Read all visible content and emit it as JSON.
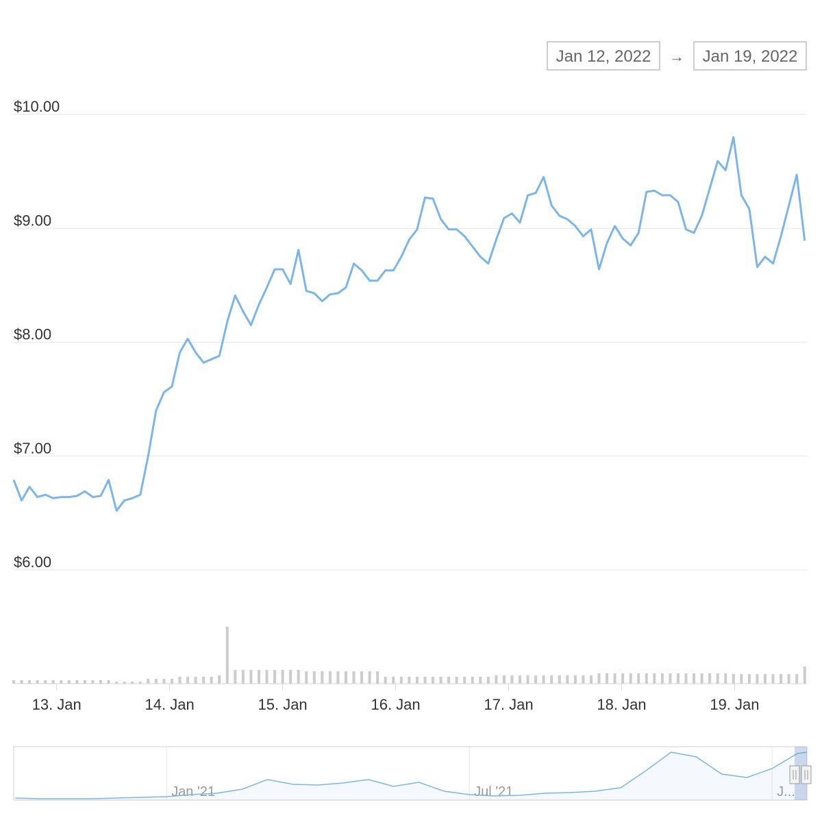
{
  "chart_data": [
    {
      "type": "line",
      "range_from": "Jan 12, 2022",
      "range_arrow": "→",
      "range_to": "Jan 19, 2022",
      "x": [
        12.62,
        12.69,
        12.76,
        12.83,
        12.9,
        12.97,
        13.04,
        13.11,
        13.18,
        13.25,
        13.32,
        13.39,
        13.46,
        13.53,
        13.6,
        13.67,
        13.74,
        13.81,
        13.88,
        13.95,
        14.02,
        14.09,
        14.16,
        14.23,
        14.3,
        14.37,
        14.44,
        14.51,
        14.58,
        14.65,
        14.72,
        14.79,
        14.86,
        14.93,
        15.0,
        15.07,
        15.14,
        15.21,
        15.28,
        15.35,
        15.42,
        15.49,
        15.56,
        15.63,
        15.7,
        15.77,
        15.84,
        15.91,
        15.98,
        16.05,
        16.12,
        16.19,
        16.26,
        16.33,
        16.4,
        16.47,
        16.54,
        16.61,
        16.68,
        16.75,
        16.82,
        16.89,
        16.96,
        17.03,
        17.1,
        17.17,
        17.24,
        17.31,
        17.38,
        17.45,
        17.52,
        17.59,
        17.66,
        17.73,
        17.8,
        17.87,
        17.94,
        18.01,
        18.08,
        18.15,
        18.22,
        18.29,
        18.36,
        18.43,
        18.5,
        18.57,
        18.64,
        18.71,
        18.78,
        18.85,
        18.92,
        18.99,
        19.06,
        19.13,
        19.2,
        19.27,
        19.34,
        19.41,
        19.48,
        19.55,
        19.62
      ],
      "series": [
        {
          "color": "#7cb5ec",
          "values": [
            6.79,
            6.61,
            6.73,
            6.64,
            6.66,
            6.63,
            6.64,
            6.64,
            6.65,
            6.69,
            6.64,
            6.65,
            6.79,
            6.52,
            6.61,
            6.63,
            6.66,
            7.0,
            7.4,
            7.56,
            7.61,
            7.91,
            8.03,
            7.91,
            7.82,
            7.85,
            7.88,
            8.18,
            8.41,
            8.27,
            8.15,
            8.33,
            8.48,
            8.64,
            8.64,
            8.51,
            8.81,
            8.45,
            8.43,
            8.36,
            8.42,
            8.43,
            8.48,
            8.69,
            8.63,
            8.54,
            8.54,
            8.63,
            8.63,
            8.75,
            8.9,
            8.99,
            9.27,
            9.26,
            9.08,
            8.99,
            8.99,
            8.93,
            8.84,
            8.75,
            8.69,
            8.9,
            9.09,
            9.13,
            9.05,
            9.29,
            9.31,
            9.45,
            9.2,
            9.11,
            9.08,
            9.02,
            8.93,
            8.99,
            8.64,
            8.87,
            9.02,
            8.91,
            8.85,
            8.96,
            9.32,
            9.33,
            9.29,
            9.29,
            9.23,
            8.99,
            8.96,
            9.11,
            9.35,
            9.59,
            9.51,
            9.8,
            9.29,
            9.17,
            8.66,
            8.75,
            8.69,
            8.93,
            9.2,
            9.47,
            8.89
          ]
        },
        {
          "color": "#cccccc",
          "axis": "y2",
          "values": [
            5,
            5,
            5,
            5,
            5,
            5,
            5,
            5,
            5,
            5,
            5,
            5,
            5,
            3,
            3,
            3,
            3,
            7,
            7,
            7,
            7,
            10,
            10,
            10,
            10,
            10,
            12,
            83,
            20,
            20,
            20,
            20,
            20,
            20,
            20,
            20,
            20,
            18,
            18,
            18,
            18,
            18,
            18,
            18,
            18,
            18,
            18,
            10,
            10,
            10,
            10,
            10,
            10,
            10,
            10,
            10,
            10,
            10,
            10,
            10,
            10,
            12,
            12,
            12,
            12,
            12,
            12,
            12,
            12,
            12,
            12,
            12,
            12,
            12,
            15,
            15,
            15,
            15,
            15,
            15,
            15,
            15,
            15,
            15,
            15,
            15,
            15,
            15,
            15,
            15,
            15,
            14,
            14,
            14,
            14,
            14,
            14,
            14,
            14,
            14,
            25
          ]
        }
      ],
      "xlim": [
        12.62,
        19.64
      ],
      "xticks": [
        {
          "value": 13,
          "label": "13. Jan"
        },
        {
          "value": 14,
          "label": "14. Jan"
        },
        {
          "value": 15,
          "label": "15. Jan"
        },
        {
          "value": 16,
          "label": "16. Jan"
        },
        {
          "value": 17,
          "label": "17. Jan"
        },
        {
          "value": 18,
          "label": "18. Jan"
        },
        {
          "value": 19,
          "label": "19. Jan"
        }
      ],
      "ylim": [
        6,
        10
      ],
      "yticks": [
        {
          "value": 6,
          "label": "$6.00"
        },
        {
          "value": 7,
          "label": "$7.00"
        },
        {
          "value": 8,
          "label": "$8.00"
        },
        {
          "value": 9,
          "label": "$9.00"
        },
        {
          "value": 10,
          "label": "$10.00"
        }
      ],
      "y2lim": [
        0,
        100
      ],
      "grid": true
    },
    {
      "type": "area",
      "x": [
        -3,
        -2.5,
        -2,
        -1.5,
        -1,
        -0.5,
        0,
        0.5,
        1,
        1.5,
        2,
        2.5,
        3,
        3.5,
        4,
        4.5,
        5,
        5.5,
        6,
        6.5,
        7,
        7.5,
        8,
        8.5,
        9,
        9.5,
        10,
        10.5,
        11,
        11.5,
        12,
        12.5,
        12.69
      ],
      "values": [
        3.8,
        2.6,
        2.6,
        2.6,
        3.8,
        5.1,
        6.4,
        10.3,
        12.8,
        20.5,
        38.5,
        29.5,
        28.2,
        32.1,
        38.5,
        25.6,
        33.3,
        16.7,
        10.3,
        7.7,
        9.0,
        12.8,
        14.1,
        16.7,
        23.1,
        55.1,
        89.7,
        80.8,
        48.7,
        42.3,
        59.0,
        87.2,
        89.7
      ],
      "color": "#7cb5ec",
      "xlim": [
        -3.03,
        12.69
      ],
      "xticks": [
        {
          "value": 0,
          "label": "Jan '21"
        },
        {
          "value": 6,
          "label": "Jul '21"
        },
        {
          "value": 12,
          "label": "J..."
        }
      ],
      "ylim": [
        0,
        100
      ]
    }
  ]
}
